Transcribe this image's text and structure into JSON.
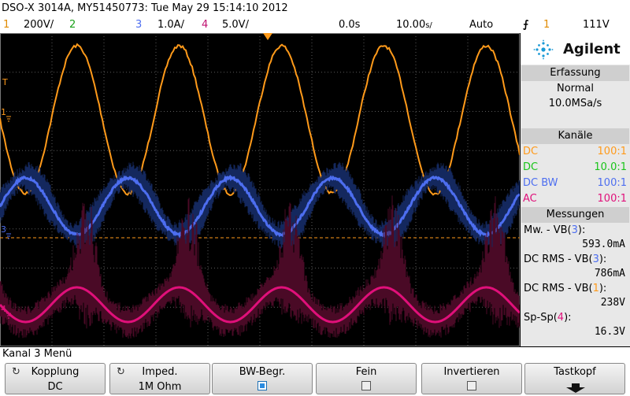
{
  "title": "DSO-X 3014A, MY51450773: Tue May 29 15:14:10 2012",
  "status": {
    "ch1_num": "1",
    "ch1_scale": "200V/",
    "ch2_num": "2",
    "ch3_num": "3",
    "ch3_scale": "1.0A/",
    "ch4_num": "4",
    "ch4_scale": "5.0V/",
    "time_delay": "0.0s",
    "time_scale": "10.00",
    "time_unit": "s/",
    "trigger_mode": "Auto",
    "trigger_source": "1",
    "trigger_level": "111V"
  },
  "colors": {
    "ch1": "#ff9a1a",
    "ch2": "#19c419",
    "ch3": "#4d6ef0",
    "ch4": "#e0107a",
    "ch3_env": "#14285e",
    "ch4_env": "#4a0a26"
  },
  "markers": {
    "trigger_t": "T",
    "ch1": "1",
    "ch3": "3",
    "ch4": "4"
  },
  "brand": "Agilent",
  "panel": {
    "acq_title": "Erfassung",
    "acq_mode": "Normal",
    "acq_rate": "10.0MSa/s",
    "channels_title": "Kanäle",
    "channels": [
      {
        "coupling": "DC",
        "ratio": "100:1",
        "color": "#ff9a1a"
      },
      {
        "coupling": "DC",
        "ratio": "10.0:1",
        "color": "#19c419"
      },
      {
        "coupling": "DC BW",
        "ratio": "100:1",
        "color": "#4d6ef0"
      },
      {
        "coupling": "AC",
        "ratio": "100:1",
        "color": "#e0107a"
      }
    ],
    "meas_title": "Messungen",
    "measurements": [
      {
        "label": "Mw. - VB(",
        "ch": "3",
        "close": "):",
        "value": "593.0mA",
        "color": "#4d6ef0"
      },
      {
        "label": "DC RMS - VB(",
        "ch": "3",
        "close": "):",
        "value": "786mA",
        "color": "#4d6ef0"
      },
      {
        "label": "DC RMS - VB(",
        "ch": "1",
        "close": "):",
        "value": "238V",
        "color": "#ff9a1a"
      },
      {
        "label": "Sp-Sp(",
        "ch": "4",
        "close": "):",
        "value": "16.3V",
        "color": "#e0107a"
      }
    ]
  },
  "menu_title": "Kanal 3 Menü",
  "softkeys": [
    {
      "label": "Kopplung",
      "value": "DC"
    },
    {
      "label": "Imped.",
      "value": "1M Ohm"
    },
    {
      "label": "BW-Begr.",
      "checked": true
    },
    {
      "label": "Fein",
      "checked": false
    },
    {
      "label": "Invertieren",
      "checked": false
    },
    {
      "label": "Tastkopf"
    }
  ]
}
